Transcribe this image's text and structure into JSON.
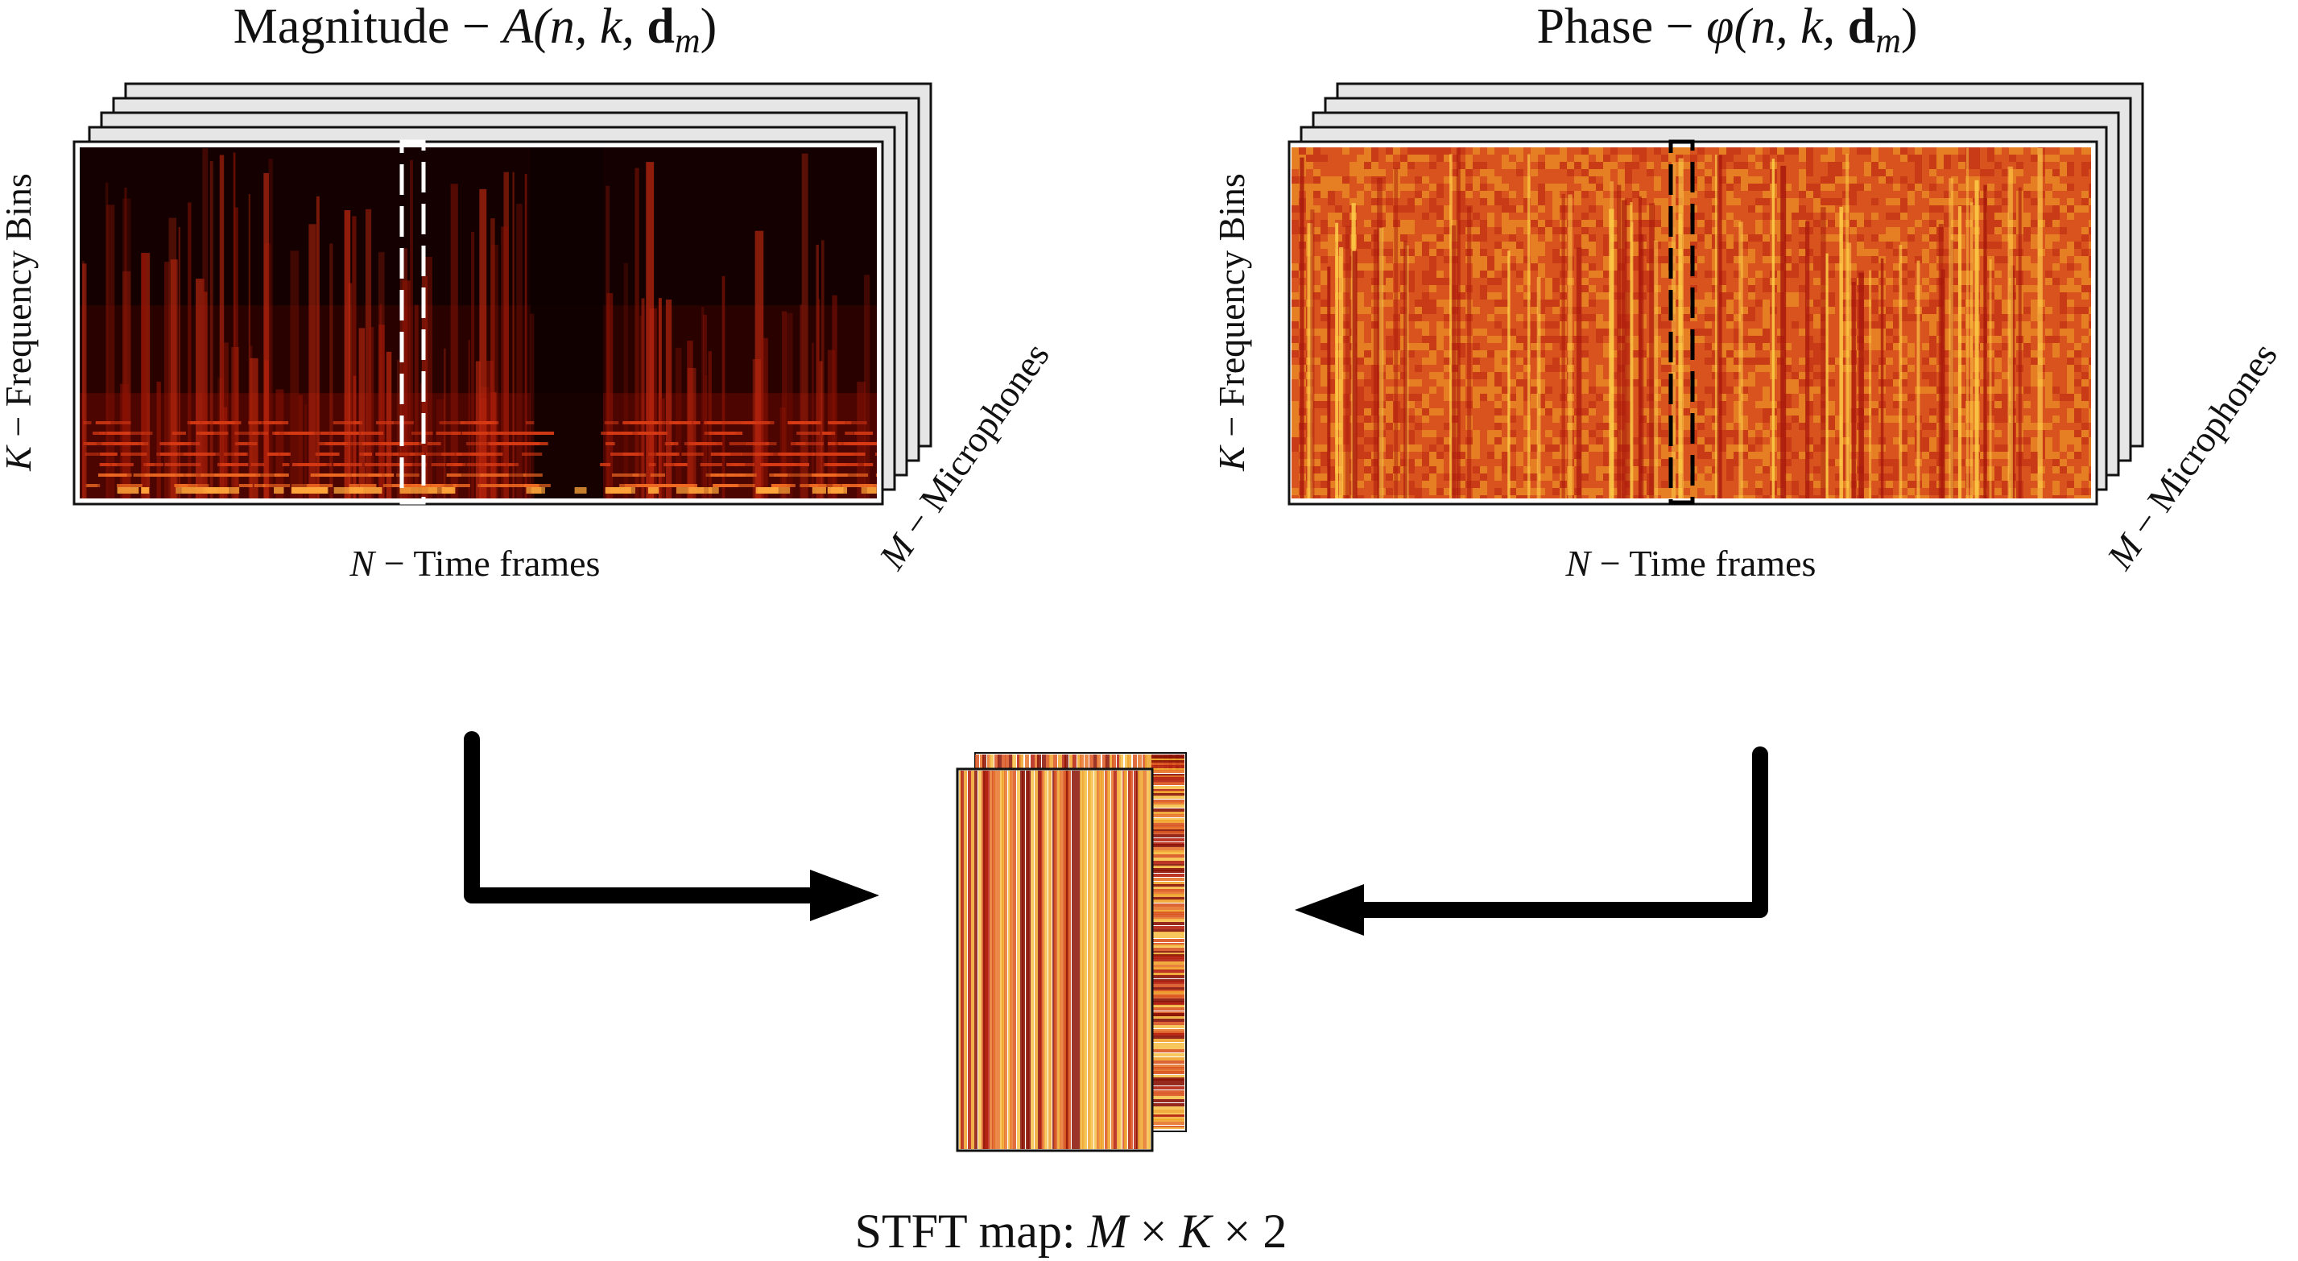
{
  "magnitude_panel": {
    "title_prefix": "Magnitude − ",
    "title_math": {
      "fn": "A",
      "args": "(n, k, ",
      "vec": "d",
      "sub": "m",
      "close": ")"
    },
    "y_label_var": "K",
    "y_label_text": " − Frequency Bins",
    "x_label_var": "N",
    "x_label_text": " − Time frames",
    "depth_label_var": "M",
    "depth_label_text": " − Microphones",
    "colors": {
      "dark": "#1a0000",
      "mid": "#8b0a00",
      "bright": "#e8401a",
      "hot": "#ffb040"
    }
  },
  "phase_panel": {
    "title_prefix": "Phase − ",
    "title_math": {
      "fn": "φ",
      "args": "(n, k, ",
      "vec": "d",
      "sub": "m",
      "close": ")"
    },
    "y_label_var": "K",
    "y_label_text": " − Frequency Bins",
    "x_label_var": "N",
    "x_label_text": " − Time frames",
    "depth_label_var": "M",
    "depth_label_text": " − Microphones",
    "colors": {
      "base": "#d9531e",
      "light": "#f0a22a",
      "dark": "#a8180c"
    }
  },
  "stft_map": {
    "caption_prefix": "STFT map:  ",
    "caption_math": {
      "m": "M",
      "times1": " × ",
      "k": "K",
      "times2": " × ",
      "two": "2"
    }
  },
  "colors": {
    "stack_sheet": "#e6e6e6",
    "stroke": "#111111",
    "arrow": "#000000"
  }
}
